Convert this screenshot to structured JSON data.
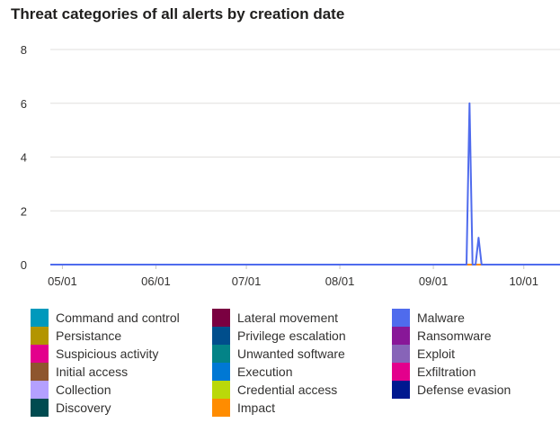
{
  "chart_data": {
    "type": "line",
    "title": "Threat categories of all alerts by creation date",
    "xlabel": "",
    "ylabel": "",
    "ylim": [
      0,
      8
    ],
    "yticks": [
      0,
      2,
      4,
      6,
      8
    ],
    "xlim": [
      "2023-04-27",
      "2023-10-13"
    ],
    "xticks": [
      {
        "date": "2023-05-01",
        "label": "05/01"
      },
      {
        "date": "2023-06-01",
        "label": "06/01"
      },
      {
        "date": "2023-07-01",
        "label": "07/01"
      },
      {
        "date": "2023-08-01",
        "label": "08/01"
      },
      {
        "date": "2023-09-01",
        "label": "09/01"
      },
      {
        "date": "2023-10-01",
        "label": "10/01"
      }
    ],
    "grid": true,
    "legend_position": "bottom",
    "series": [
      {
        "name": "Command and control",
        "color": "#0099bc",
        "x": [
          "2023-04-27",
          "2023-10-13"
        ],
        "y": [
          0,
          0
        ]
      },
      {
        "name": "Lateral movement",
        "color": "#7a0041",
        "x": [
          "2023-04-27",
          "2023-10-13"
        ],
        "y": [
          0,
          0
        ]
      },
      {
        "name": "Malware",
        "color": "#4f6bed",
        "x": [
          "2023-04-27",
          "2023-09-11",
          "2023-09-12",
          "2023-09-13",
          "2023-09-14",
          "2023-09-15",
          "2023-09-16",
          "2023-09-17",
          "2023-09-18",
          "2023-10-13"
        ],
        "y": [
          0,
          0,
          0,
          6,
          0,
          0,
          1,
          0,
          0,
          0
        ]
      },
      {
        "name": "Persistance",
        "color": "#b39500",
        "x": [
          "2023-04-27",
          "2023-10-13"
        ],
        "y": [
          0,
          0
        ]
      },
      {
        "name": "Privilege escalation",
        "color": "#004e8c",
        "x": [
          "2023-04-27",
          "2023-10-13"
        ],
        "y": [
          0,
          0
        ]
      },
      {
        "name": "Ransomware",
        "color": "#881798",
        "x": [
          "2023-04-27",
          "2023-10-13"
        ],
        "y": [
          0,
          0
        ]
      },
      {
        "name": "Suspicious activity",
        "color": "#e3008c",
        "x": [
          "2023-04-27",
          "2023-10-13"
        ],
        "y": [
          0,
          0
        ]
      },
      {
        "name": "Unwanted software",
        "color": "#038387",
        "x": [
          "2023-04-27",
          "2023-10-13"
        ],
        "y": [
          0,
          0
        ]
      },
      {
        "name": "Exploit",
        "color": "#8764b8",
        "x": [
          "2023-04-27",
          "2023-10-13"
        ],
        "y": [
          0,
          0
        ]
      },
      {
        "name": "Initial access",
        "color": "#8e562e",
        "x": [
          "2023-04-27",
          "2023-10-13"
        ],
        "y": [
          0,
          0
        ]
      },
      {
        "name": "Execution",
        "color": "#0078d4",
        "x": [
          "2023-04-27",
          "2023-10-13"
        ],
        "y": [
          0,
          0
        ]
      },
      {
        "name": "Exfiltration",
        "color": "#e3008c",
        "x": [
          "2023-04-27",
          "2023-10-13"
        ],
        "y": [
          0,
          0
        ]
      },
      {
        "name": "Collection",
        "color": "#b4a0ff",
        "x": [
          "2023-04-27",
          "2023-10-13"
        ],
        "y": [
          0,
          0
        ]
      },
      {
        "name": "Credential access",
        "color": "#bad80a",
        "x": [
          "2023-04-27",
          "2023-10-13"
        ],
        "y": [
          0,
          0
        ]
      },
      {
        "name": "Defense evasion",
        "color": "#00188f",
        "x": [
          "2023-04-27",
          "2023-10-13"
        ],
        "y": [
          0,
          0
        ]
      },
      {
        "name": "Discovery",
        "color": "#004b50",
        "x": [
          "2023-04-27",
          "2023-10-13"
        ],
        "y": [
          0,
          0
        ]
      },
      {
        "name": "Impact",
        "color": "#ff8c00",
        "x": [
          "2023-04-27",
          "2023-10-13"
        ],
        "y": [
          0,
          0
        ]
      }
    ]
  }
}
